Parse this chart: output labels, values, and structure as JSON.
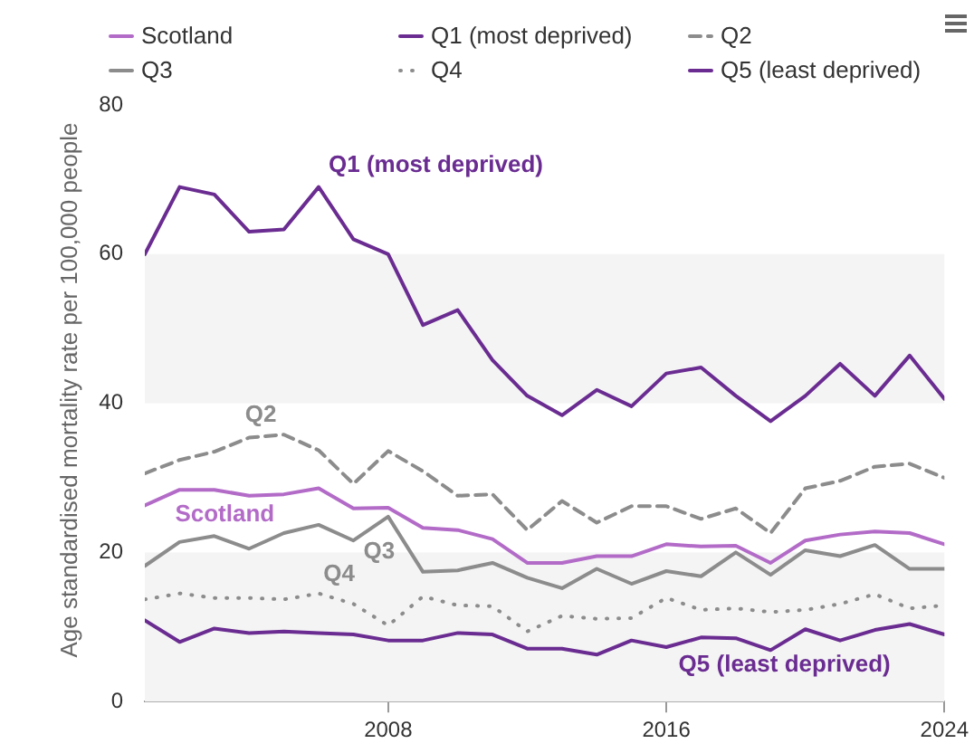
{
  "chart_data": {
    "type": "line",
    "ylabel": "Age standardised mortality rate per 100,000 people",
    "x": [
      2001,
      2002,
      2003,
      2004,
      2005,
      2006,
      2007,
      2008,
      2009,
      2010,
      2011,
      2012,
      2013,
      2014,
      2015,
      2016,
      2017,
      2018,
      2019,
      2020,
      2021,
      2022,
      2023,
      2024
    ],
    "series": [
      {
        "name": "Scotland",
        "color": "#b36bc8",
        "line_style": "solid",
        "values": [
          26.3,
          28.4,
          28.4,
          27.6,
          27.8,
          28.6,
          25.9,
          26,
          23.3,
          23,
          21.8,
          18.6,
          18.6,
          19.5,
          19.5,
          21.1,
          20.8,
          20.9,
          18.6,
          21.6,
          22.4,
          22.8,
          22.6,
          21.1
        ]
      },
      {
        "name": "Q1 (most deprived)",
        "color": "#6a2c91",
        "line_style": "solid",
        "values": [
          60,
          69,
          68,
          63,
          63.3,
          69,
          62,
          60,
          50.5,
          52.5,
          45.8,
          41,
          38.4,
          41.8,
          39.6,
          44,
          44.8,
          41,
          37.6,
          41,
          45.3,
          41,
          46.4,
          40.6
        ]
      },
      {
        "name": "Q2",
        "color": "#8c8c8c",
        "line_style": "dashed",
        "values": [
          30.6,
          32.4,
          33.5,
          35.4,
          35.8,
          33.7,
          29.2,
          33.6,
          30.9,
          27.6,
          27.8,
          23,
          26.9,
          24,
          26.2,
          26.2,
          24.5,
          25.9,
          22.6,
          28.6,
          29.6,
          31.5,
          31.9,
          30
        ]
      },
      {
        "name": "Q3",
        "color": "#8c8c8c",
        "line_style": "solid",
        "values": [
          18.2,
          21.4,
          22.2,
          20.5,
          22.6,
          23.7,
          21.6,
          24.8,
          17.4,
          17.6,
          18.6,
          16.6,
          15.2,
          17.8,
          15.8,
          17.5,
          16.8,
          20,
          17,
          20.3,
          19.5,
          21,
          17.8,
          17.8
        ]
      },
      {
        "name": "Q4",
        "color": "#8c8c8c",
        "line_style": "dotted",
        "values": [
          13.7,
          14.5,
          13.9,
          13.9,
          13.7,
          14.5,
          13.1,
          10.2,
          14.1,
          12.9,
          12.8,
          9.4,
          11.5,
          11.1,
          11.2,
          13.9,
          12.3,
          12.5,
          12,
          12.3,
          13.1,
          14.4,
          12.5,
          12.9
        ]
      },
      {
        "name": "Q5 (least deprived)",
        "color": "#6a2c91",
        "line_style": "solid",
        "values": [
          10.9,
          8,
          9.8,
          9.2,
          9.4,
          9.2,
          9,
          8.2,
          8.2,
          9.2,
          9,
          7.1,
          7.1,
          6.3,
          8.2,
          7.3,
          8.6,
          8.5,
          6.9,
          9.7,
          8.2,
          9.6,
          10.4,
          9
        ]
      }
    ],
    "xlim": [
      2001,
      2024
    ],
    "xticks": [
      2008,
      2016,
      2024
    ],
    "ylim": [
      0,
      80
    ],
    "yticks": [
      0,
      20,
      40,
      60,
      80
    ],
    "bands": [
      {
        "axis": "y",
        "from": 0,
        "to": 20,
        "color": "#f4f4f4"
      },
      {
        "axis": "y",
        "from": 40,
        "to": 60,
        "color": "#f4f4f4"
      }
    ],
    "legend": "top",
    "marker": "none",
    "grid": false
  }
}
